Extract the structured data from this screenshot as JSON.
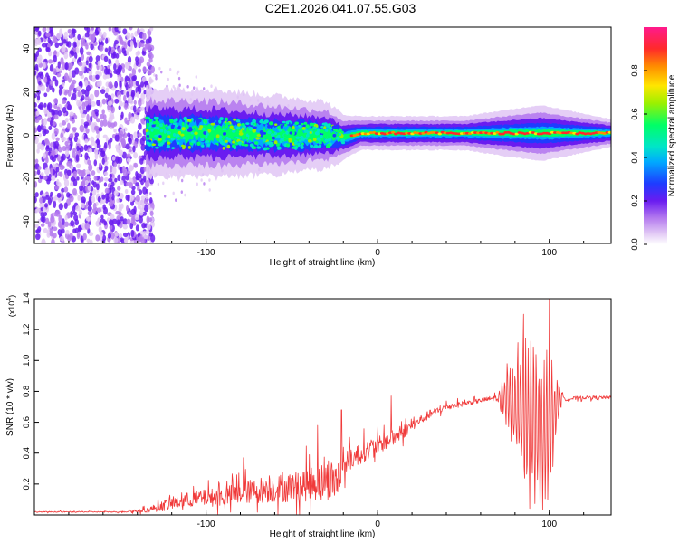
{
  "title": "C2E1.2026.041.07.55.G03",
  "colors": {
    "snr_line": "#f03a3a",
    "spec_dots": "#6a1cf0",
    "spec_band_core": "#ff2a2a",
    "spec_band_mid": "#00ff66",
    "spec_band_outer": "#1e3cff",
    "axis": "#000000"
  },
  "chart_data": [
    {
      "type": "heatmap",
      "name": "spectrogram",
      "title": "",
      "xlabel": "Height of straight line (km)",
      "ylabel": "Frequency (Hz)",
      "xlim": [
        -200,
        136
      ],
      "ylim": [
        -50,
        50
      ],
      "xticks": [
        -100,
        0,
        100
      ],
      "xtick_labels": [
        "-100",
        "0",
        "100"
      ],
      "yticks": [
        -40,
        -20,
        0,
        20,
        40
      ],
      "ytick_labels": [
        "-40",
        "-20",
        "0",
        "20",
        "40"
      ],
      "grid": false,
      "band": {
        "description_points": [
          {
            "x": -135,
            "center": 1,
            "half_width": 8
          },
          {
            "x": -100,
            "center": 1,
            "half_width": 8
          },
          {
            "x": -60,
            "center": 0,
            "half_width": 7
          },
          {
            "x": -30,
            "center": 0,
            "half_width": 6
          },
          {
            "x": -20,
            "center": -1,
            "half_width": 4
          },
          {
            "x": -10,
            "center": 1,
            "half_width": 3
          },
          {
            "x": 50,
            "center": 1,
            "half_width": 3
          },
          {
            "x": 95,
            "center": 1,
            "half_width": 5
          },
          {
            "x": 136,
            "center": 1,
            "half_width": 2.5
          }
        ],
        "peak_region_km": [
          -15,
          110
        ]
      },
      "noise_region_km": [
        -200,
        -135
      ],
      "colorbar": {
        "label": "Normalized spectral amplitude",
        "range": [
          0,
          1
        ],
        "ticks": [
          0.0,
          0.2,
          0.4,
          0.6,
          0.8
        ],
        "tick_labels": [
          "0.0",
          "0.2",
          "0.4",
          "0.6",
          "0.8"
        ]
      }
    },
    {
      "type": "line",
      "name": "snr",
      "title": "",
      "xlabel": "Height of straight line (km)",
      "ylabel": "SNR (10 * v/v)",
      "y_multiplier_label": "(x10",
      "y_multiplier_exp": "4",
      "y_multiplier_close": ")",
      "xlim": [
        -200,
        136
      ],
      "ylim": [
        0,
        1.4
      ],
      "xticks": [
        -100,
        0,
        100
      ],
      "xtick_labels": [
        "-100",
        "0",
        "100"
      ],
      "yticks": [
        0.2,
        0.4,
        0.6,
        0.8,
        1.0,
        1.2,
        1.4
      ],
      "ytick_labels": [
        "0.2",
        "0.4",
        "0.6",
        "0.8",
        "1.0",
        "1.2",
        "1.4"
      ],
      "grid": false,
      "envelope": {
        "x": [
          -200,
          -150,
          -135,
          -125,
          -110,
          -90,
          -80,
          -70,
          -50,
          -30,
          -21,
          -20,
          -10,
          0,
          10,
          20,
          30,
          40,
          60,
          70,
          75,
          80,
          85,
          90,
          95,
          100,
          105,
          108,
          110,
          120,
          136
        ],
        "base": [
          0.02,
          0.02,
          0.03,
          0.06,
          0.1,
          0.12,
          0.14,
          0.16,
          0.18,
          0.22,
          0.25,
          0.33,
          0.4,
          0.45,
          0.5,
          0.58,
          0.65,
          0.7,
          0.74,
          0.76,
          0.75,
          0.7,
          0.62,
          0.55,
          0.5,
          0.55,
          0.7,
          0.77,
          0.75,
          0.76,
          0.76
        ],
        "amplitude": [
          0.005,
          0.005,
          0.02,
          0.05,
          0.07,
          0.09,
          0.1,
          0.12,
          0.14,
          0.18,
          0.2,
          0.1,
          0.1,
          0.08,
          0.08,
          0.05,
          0.04,
          0.03,
          0.02,
          0.03,
          0.25,
          0.45,
          0.55,
          0.65,
          0.7,
          0.6,
          0.2,
          0.03,
          0.02,
          0.015,
          0.015
        ]
      },
      "notable_peaks": [
        {
          "x": -78,
          "y": 0.37
        },
        {
          "x": -35,
          "y": 0.58
        },
        {
          "x": -21,
          "y": 0.68
        },
        {
          "x": 8,
          "y": 0.77
        },
        {
          "x": 85,
          "y": 1.3
        },
        {
          "x": 100,
          "y": 1.41
        }
      ]
    }
  ]
}
